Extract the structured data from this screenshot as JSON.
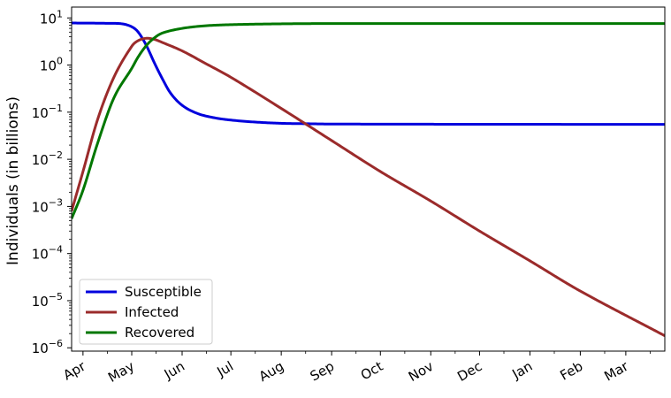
{
  "chart_data": {
    "type": "line",
    "title": "",
    "xlabel": "",
    "ylabel": "Individuals (in billions)",
    "y_scale": "log",
    "ylim": [
      8.5e-07,
      17
    ],
    "xlim": [
      "2020-03-25",
      "2021-03-25"
    ],
    "grid": false,
    "legend_position": "lower-left",
    "x_ticks": [
      {
        "label": "Apr",
        "date": "2020-04-01"
      },
      {
        "label": "May",
        "date": "2020-05-01"
      },
      {
        "label": "Jun",
        "date": "2020-06-01"
      },
      {
        "label": "Jul",
        "date": "2020-07-01"
      },
      {
        "label": "Aug",
        "date": "2020-08-01"
      },
      {
        "label": "Sep",
        "date": "2020-09-01"
      },
      {
        "label": "Oct",
        "date": "2020-10-01"
      },
      {
        "label": "Nov",
        "date": "2020-11-01"
      },
      {
        "label": "Dec",
        "date": "2020-12-01"
      },
      {
        "label": "Jan",
        "date": "2021-01-01"
      },
      {
        "label": "Feb",
        "date": "2021-02-01"
      },
      {
        "label": "Mar",
        "date": "2021-03-01"
      }
    ],
    "y_ticks": [
      {
        "base": "10",
        "exp": "1",
        "value": 10
      },
      {
        "base": "10",
        "exp": "0",
        "value": 1
      },
      {
        "base": "10",
        "exp": "−1",
        "value": 0.1
      },
      {
        "base": "10",
        "exp": "−2",
        "value": 0.01
      },
      {
        "base": "10",
        "exp": "−3",
        "value": 0.001
      },
      {
        "base": "10",
        "exp": "−4",
        "value": 0.0001
      },
      {
        "base": "10",
        "exp": "−5",
        "value": 1e-05
      },
      {
        "base": "10",
        "exp": "−6",
        "value": 1e-06
      }
    ],
    "series": [
      {
        "name": "Susceptible",
        "color": "#0000dd",
        "points": [
          [
            "2020-03-25",
            7.8
          ],
          [
            "2020-04-15",
            7.7
          ],
          [
            "2020-04-25",
            7.5
          ],
          [
            "2020-05-01",
            6.5
          ],
          [
            "2020-05-05",
            5.0
          ],
          [
            "2020-05-10",
            2.6
          ],
          [
            "2020-05-15",
            1.1
          ],
          [
            "2020-05-20",
            0.5
          ],
          [
            "2020-05-25",
            0.25
          ],
          [
            "2020-06-01",
            0.14
          ],
          [
            "2020-06-10",
            0.095
          ],
          [
            "2020-06-20",
            0.077
          ],
          [
            "2020-07-01",
            0.068
          ],
          [
            "2020-07-15",
            0.062
          ],
          [
            "2020-08-01",
            0.058
          ],
          [
            "2020-08-15",
            0.057
          ],
          [
            "2020-09-01",
            0.056
          ],
          [
            "2021-03-25",
            0.055
          ]
        ]
      },
      {
        "name": "Infected",
        "color": "#9b2b2b",
        "points": [
          [
            "2020-03-25",
            0.0008
          ],
          [
            "2020-04-01",
            0.0055
          ],
          [
            "2020-04-10",
            0.07
          ],
          [
            "2020-04-20",
            0.55
          ],
          [
            "2020-05-01",
            2.5
          ],
          [
            "2020-05-05",
            3.3
          ],
          [
            "2020-05-10",
            3.7
          ],
          [
            "2020-05-15",
            3.5
          ],
          [
            "2020-05-20",
            3.0
          ],
          [
            "2020-06-01",
            2.0
          ],
          [
            "2020-06-15",
            1.1
          ],
          [
            "2020-07-01",
            0.55
          ],
          [
            "2020-08-01",
            0.12
          ],
          [
            "2020-09-01",
            0.025
          ],
          [
            "2020-10-01",
            0.0055
          ],
          [
            "2020-11-01",
            0.0013
          ],
          [
            "2020-12-01",
            0.0003
          ],
          [
            "2021-01-01",
            7e-05
          ],
          [
            "2021-02-01",
            1.6e-05
          ],
          [
            "2021-03-25",
            1.8e-06
          ]
        ]
      },
      {
        "name": "Recovered",
        "color": "#007700",
        "points": [
          [
            "2020-03-25",
            0.00055
          ],
          [
            "2020-04-01",
            0.0022
          ],
          [
            "2020-04-10",
            0.022
          ],
          [
            "2020-04-20",
            0.2
          ],
          [
            "2020-05-01",
            0.85
          ],
          [
            "2020-05-05",
            1.5
          ],
          [
            "2020-05-10",
            2.6
          ],
          [
            "2020-05-15",
            3.8
          ],
          [
            "2020-05-20",
            4.8
          ],
          [
            "2020-06-01",
            6.0
          ],
          [
            "2020-06-15",
            6.8
          ],
          [
            "2020-07-01",
            7.2
          ],
          [
            "2020-08-01",
            7.5
          ],
          [
            "2020-09-01",
            7.6
          ],
          [
            "2021-03-25",
            7.6
          ]
        ]
      }
    ]
  }
}
